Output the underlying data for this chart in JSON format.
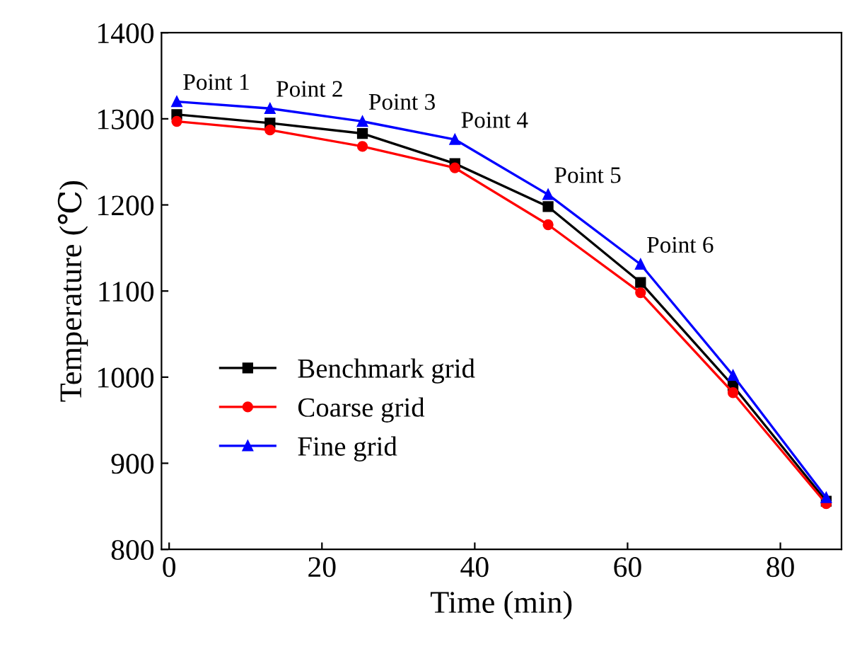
{
  "chart_data": {
    "type": "line",
    "xlabel": "Time (min)",
    "ylabel": "Temperature (℃)",
    "x": [
      1,
      13.2,
      25.3,
      37.4,
      49.6,
      61.7,
      73.8,
      86
    ],
    "series": [
      {
        "name": "Benchmark grid",
        "color": "#000000",
        "marker": "square",
        "values": [
          1305,
          1295,
          1283,
          1248,
          1198,
          1110,
          990,
          856
        ]
      },
      {
        "name": "Coarse grid",
        "color": "#ff0000",
        "marker": "circle",
        "values": [
          1297,
          1287,
          1268,
          1243,
          1177,
          1098,
          982,
          853
        ]
      },
      {
        "name": "Fine grid",
        "color": "#0000ff",
        "marker": "triangle",
        "values": [
          1320,
          1312,
          1297,
          1276,
          1212,
          1131,
          1002,
          860
        ]
      }
    ],
    "annotations": [
      {
        "text": "Point 1",
        "x": 1,
        "y": 1320
      },
      {
        "text": "Point 2",
        "x": 13.2,
        "y": 1312
      },
      {
        "text": "Point 3",
        "x": 25.3,
        "y": 1297
      },
      {
        "text": "Point 4",
        "x": 37.4,
        "y": 1276
      },
      {
        "text": "Point 5",
        "x": 49.6,
        "y": 1212
      },
      {
        "text": "Point 6",
        "x": 61.7,
        "y": 1131
      }
    ],
    "xlim": [
      -1,
      88
    ],
    "xticks": [
      0,
      20,
      40,
      60,
      80
    ],
    "ylim": [
      800,
      1400
    ],
    "yticks": [
      800,
      900,
      1000,
      1100,
      1200,
      1300,
      1400
    ],
    "grid": false,
    "legend": "left"
  }
}
